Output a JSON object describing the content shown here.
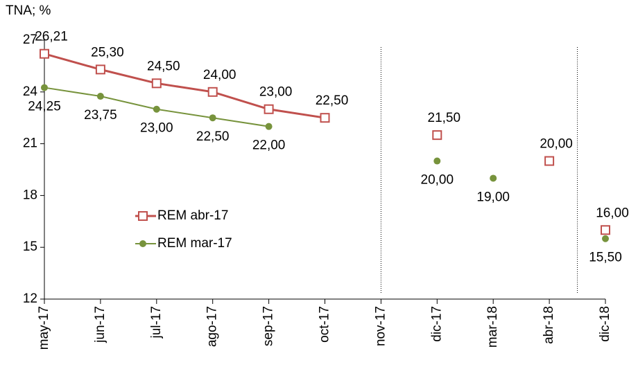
{
  "chart_data": {
    "type": "line",
    "y_label": "TNA; %",
    "categories": [
      "may-17",
      "jun-17",
      "jul-17",
      "ago-17",
      "sep-17",
      "oct-17",
      "nov-17",
      "dic-17",
      "mar-18",
      "abr-18",
      "dic-18"
    ],
    "series": [
      {
        "name": "REM abr-17",
        "color": "#c0504d",
        "marker": "square",
        "values": [
          26.21,
          25.3,
          24.5,
          24.0,
          23.0,
          22.5,
          null,
          21.5,
          null,
          20.0,
          16.0
        ],
        "value_labels": [
          "26,21",
          "25,30",
          "24,50",
          "24,00",
          "23,00",
          "22,50",
          null,
          "21,50",
          null,
          "20,00",
          "16,00"
        ]
      },
      {
        "name": "REM mar-17",
        "color": "#77933c",
        "marker": "circle",
        "values": [
          24.25,
          23.75,
          23.0,
          22.5,
          22.0,
          null,
          null,
          20.0,
          19.0,
          null,
          15.5
        ],
        "value_labels": [
          "24,25",
          "23,75",
          "23,00",
          "22,50",
          "22,00",
          null,
          null,
          "20,00",
          "19,00",
          null,
          "15,50"
        ]
      }
    ],
    "ylim": [
      12,
      27
    ],
    "yticks": [
      12,
      15,
      18,
      21,
      24,
      27
    ],
    "dividers": [
      6,
      9.5
    ],
    "grid": false,
    "legend": "inside-left"
  }
}
